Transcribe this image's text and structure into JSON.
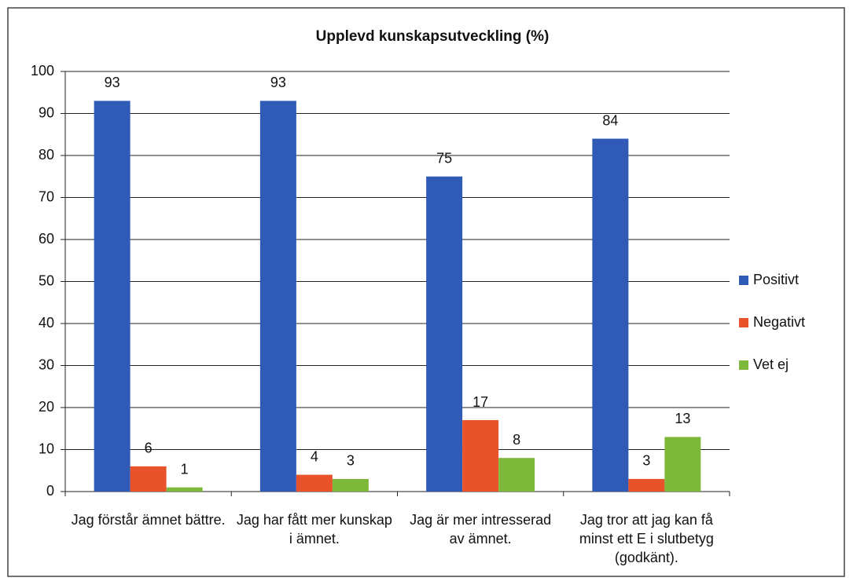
{
  "chart_data": {
    "type": "bar",
    "title": "Upplevd kunskapsutveckling (%)",
    "categories": [
      "Jag förstår ämnet bättre.",
      "Jag har fått mer kunskap i ämnet.",
      "Jag är mer intresserad av ämnet.",
      "Jag tror att jag kan få minst ett E i slutbetyg (godkänt)."
    ],
    "series": [
      {
        "name": "Positivt",
        "color": "#2f5bb7",
        "values": [
          93,
          93,
          75,
          84
        ]
      },
      {
        "name": "Negativt",
        "color": "#e8532b",
        "values": [
          6,
          4,
          17,
          3
        ]
      },
      {
        "name": "Vet ej",
        "color": "#7db83b",
        "values": [
          1,
          3,
          8,
          13
        ]
      }
    ],
    "ylim": [
      0,
      100
    ],
    "yticks": [
      0,
      10,
      20,
      30,
      40,
      50,
      60,
      70,
      80,
      90,
      100
    ],
    "grid": true,
    "legend": "right"
  }
}
